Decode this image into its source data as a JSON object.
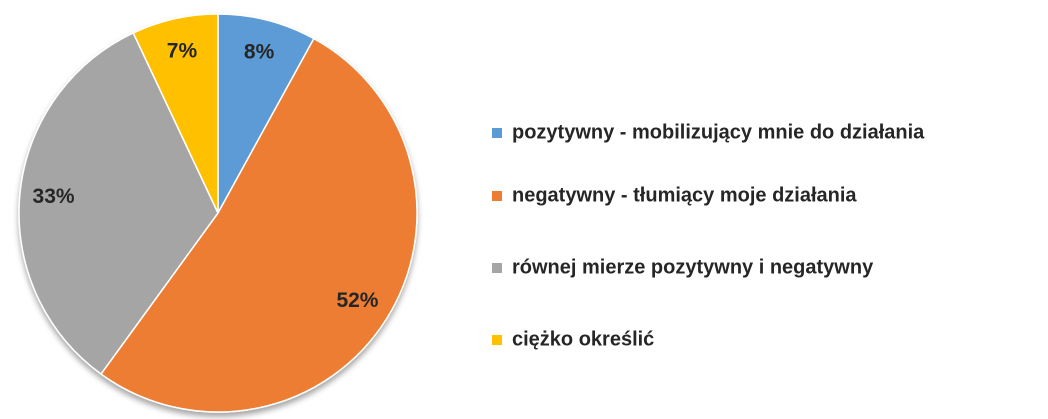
{
  "chart_data": {
    "type": "pie",
    "categories": [
      "pozytywny - mobilizujący mnie do działania",
      "negatywny - tłumiący moje działania",
      "równej mierze pozytywny i negatywny",
      "ciężko określić"
    ],
    "values": [
      8,
      52,
      33,
      7
    ],
    "value_labels": [
      "8%",
      "52%",
      "33%",
      "7%"
    ],
    "colors": [
      "#5b9bd5",
      "#ed7d31",
      "#a5a5a5",
      "#ffc000"
    ],
    "legend": "right"
  }
}
